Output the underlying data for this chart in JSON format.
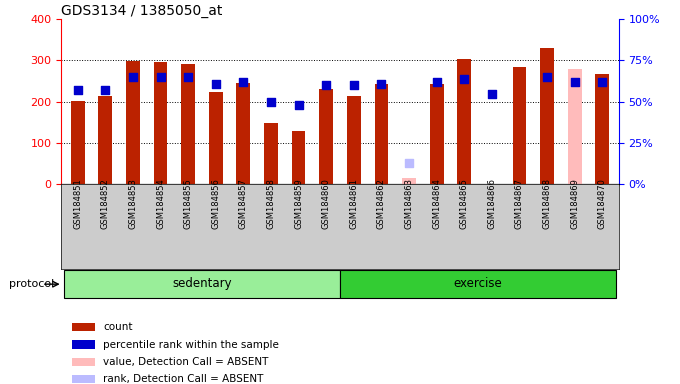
{
  "title": "GDS3134 / 1385050_at",
  "samples": [
    "GSM184851",
    "GSM184852",
    "GSM184853",
    "GSM184854",
    "GSM184855",
    "GSM184856",
    "GSM184857",
    "GSM184858",
    "GSM184859",
    "GSM184860",
    "GSM184861",
    "GSM184862",
    "GSM184863",
    "GSM184864",
    "GSM184865",
    "GSM184866",
    "GSM184867",
    "GSM184868",
    "GSM184869",
    "GSM184870"
  ],
  "counts": [
    201,
    213,
    298,
    297,
    292,
    224,
    246,
    148,
    130,
    232,
    214,
    242,
    null,
    242,
    304,
    null,
    285,
    330,
    null,
    268
  ],
  "percentile_ranks": [
    57,
    57,
    65,
    65,
    65,
    61,
    62,
    50,
    48,
    60,
    60,
    61,
    null,
    62,
    64,
    55,
    null,
    65,
    62,
    62
  ],
  "absent_counts": [
    null,
    null,
    null,
    null,
    null,
    null,
    null,
    null,
    null,
    null,
    null,
    null,
    15,
    null,
    null,
    null,
    null,
    null,
    280,
    null
  ],
  "absent_ranks": [
    null,
    null,
    null,
    null,
    null,
    null,
    null,
    null,
    null,
    null,
    null,
    null,
    13,
    null,
    null,
    null,
    null,
    null,
    null,
    null
  ],
  "protocol": [
    "sedentary",
    "sedentary",
    "sedentary",
    "sedentary",
    "sedentary",
    "sedentary",
    "sedentary",
    "sedentary",
    "sedentary",
    "sedentary",
    "exercise",
    "exercise",
    "exercise",
    "exercise",
    "exercise",
    "exercise",
    "exercise",
    "exercise",
    "exercise",
    "exercise"
  ],
  "bar_color": "#bb2200",
  "dot_color": "#0000cc",
  "absent_bar_color": "#ffbbbb",
  "absent_dot_color": "#bbbbff",
  "sedentary_color": "#99ee99",
  "exercise_color": "#33cc33",
  "label_bg_color": "#cccccc",
  "ylim_left": [
    0,
    400
  ],
  "ylim_right": [
    0,
    100
  ],
  "yticks_left": [
    0,
    100,
    200,
    300,
    400
  ],
  "yticks_right": [
    0,
    25,
    50,
    75,
    100
  ],
  "yticklabels_right": [
    "0%",
    "25%",
    "50%",
    "75%",
    "100%"
  ],
  "grid_values": [
    100,
    200,
    300
  ],
  "bar_width": 0.5,
  "dot_size": 35,
  "legend_items": [
    {
      "label": "count",
      "color": "#bb2200"
    },
    {
      "label": "percentile rank within the sample",
      "color": "#0000cc"
    },
    {
      "label": "value, Detection Call = ABSENT",
      "color": "#ffbbbb"
    },
    {
      "label": "rank, Detection Call = ABSENT",
      "color": "#bbbbff"
    }
  ]
}
